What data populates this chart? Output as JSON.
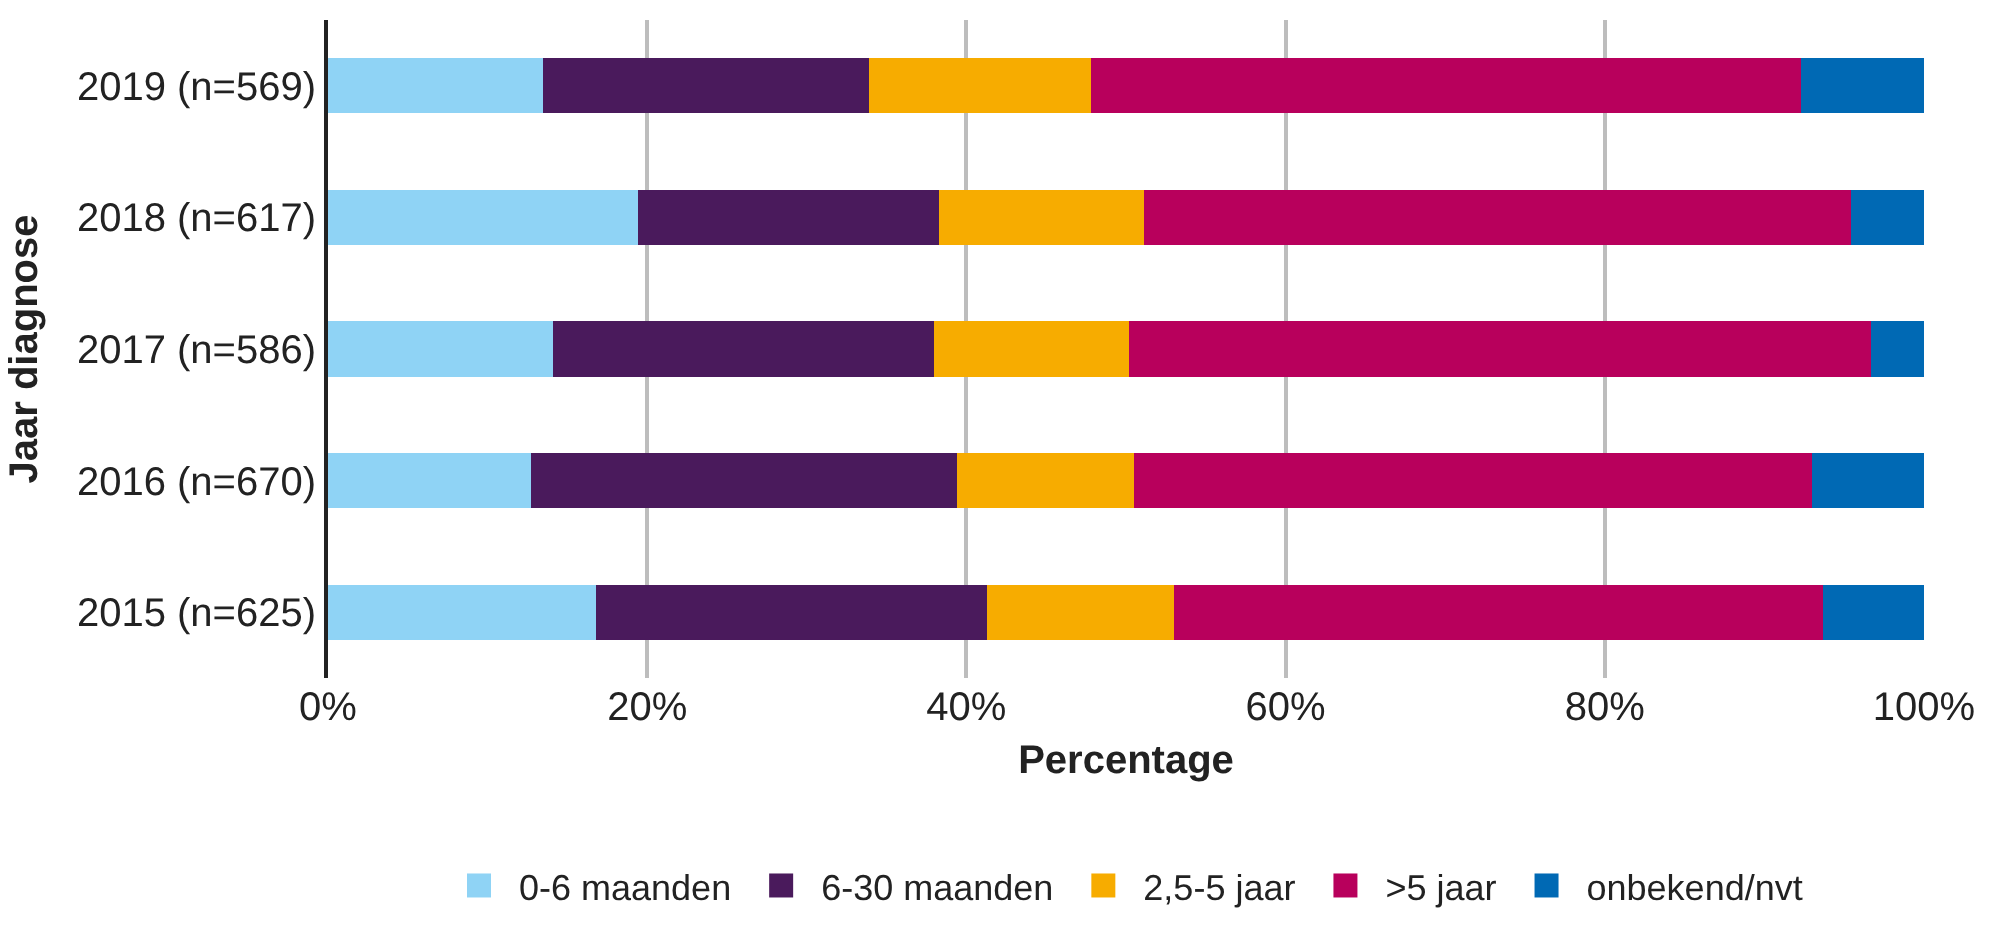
{
  "chart_data": {
    "type": "bar",
    "orientation": "horizontal",
    "stacked": true,
    "categories": [
      "2019 (n=569)",
      "2018 (n=617)",
      "2017 (n=586)",
      "2016 (n=670)",
      "2015 (n=625)"
    ],
    "series": [
      {
        "name": "0-6 maanden",
        "color": "#8fd3f5",
        "values": [
          13.5,
          19.4,
          14.1,
          12.7,
          16.8
        ]
      },
      {
        "name": "6-30 maanden",
        "color": "#4a1a5c",
        "values": [
          20.4,
          18.9,
          23.9,
          26.7,
          24.5
        ]
      },
      {
        "name": "2,5-5 jaar",
        "color": "#f7ac00",
        "values": [
          13.9,
          12.8,
          12.2,
          11.1,
          11.7
        ]
      },
      {
        "name": ">5 jaar",
        "color": "#b8005c",
        "values": [
          44.5,
          44.3,
          46.5,
          42.5,
          40.7
        ]
      },
      {
        "name": "onbekend/nvt",
        "color": "#0069b4",
        "values": [
          7.7,
          4.6,
          3.3,
          7.0,
          6.3
        ]
      }
    ],
    "xlabel": "Percentage",
    "ylabel": "Jaar diagnose",
    "xlim": [
      0,
      100
    ],
    "xticks": [
      {
        "value": 0,
        "label": "0%"
      },
      {
        "value": 20,
        "label": "20%"
      },
      {
        "value": 40,
        "label": "40%"
      },
      {
        "value": 60,
        "label": "60%"
      },
      {
        "value": 80,
        "label": "80%"
      },
      {
        "value": 100,
        "label": "100%"
      }
    ],
    "grid": "x",
    "legend": "bottom"
  }
}
